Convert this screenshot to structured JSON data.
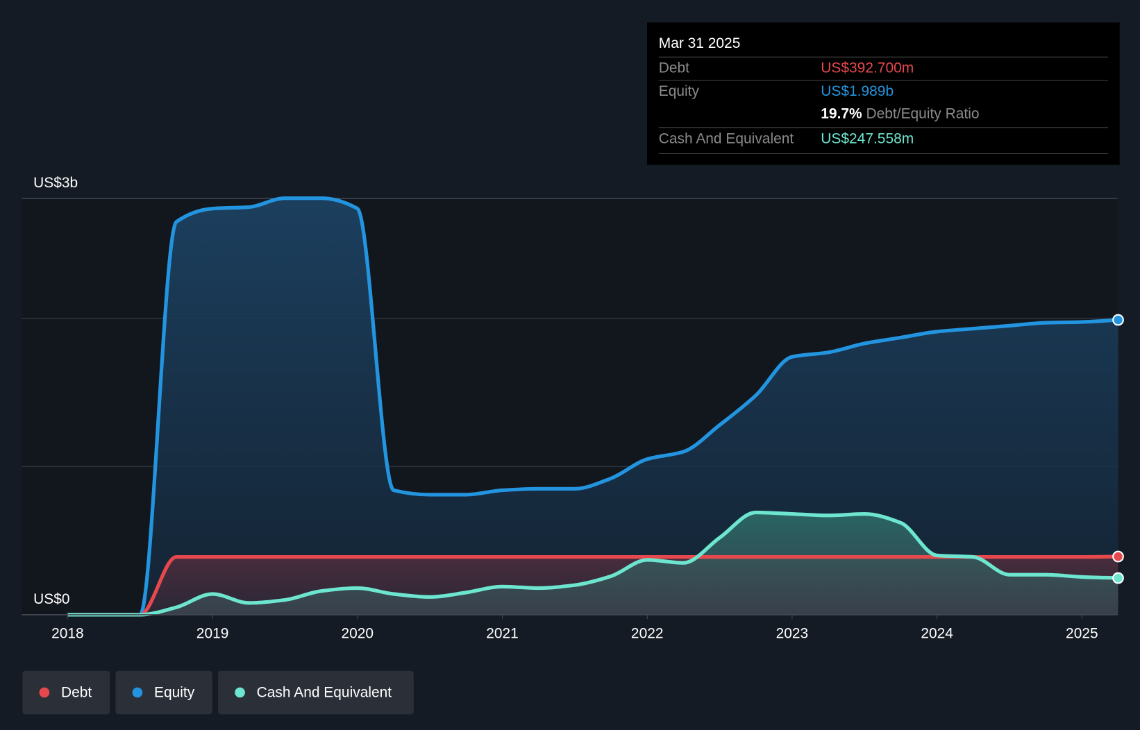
{
  "tooltip": {
    "date": "Mar 31 2025",
    "debt_label": "Debt",
    "debt_value": "US$392.700m",
    "equity_label": "Equity",
    "equity_value": "US$1.989b",
    "ratio_value": "19.7%",
    "ratio_label": "Debt/Equity Ratio",
    "cash_label": "Cash And Equivalent",
    "cash_value": "US$247.558m"
  },
  "legend": [
    {
      "label": "Debt",
      "color": "#e5484d"
    },
    {
      "label": "Equity",
      "color": "#2394df"
    },
    {
      "label": "Cash And Equivalent",
      "color": "#6de5cf"
    }
  ],
  "chart_data": {
    "type": "area",
    "ylabel_top": "US$3b",
    "ylabel_bottom": "US$0",
    "y_unit": "US$ billions",
    "ylim": [
      0,
      2.81
    ],
    "grid": true,
    "xticks": [
      "2018",
      "2019",
      "2020",
      "2021",
      "2022",
      "2023",
      "2024",
      "2025"
    ],
    "x": [
      2018,
      2018.25,
      2018.5,
      2018.75,
      2019,
      2019.25,
      2019.5,
      2019.75,
      2020,
      2020.25,
      2020.5,
      2020.75,
      2021,
      2021.25,
      2021.5,
      2021.75,
      2022,
      2022.25,
      2022.5,
      2022.75,
      2023,
      2023.25,
      2023.5,
      2023.75,
      2024,
      2024.25,
      2024.5,
      2024.75,
      2025,
      2025.25
    ],
    "series": [
      {
        "name": "Equity",
        "color": "#2394df",
        "values": [
          0,
          0,
          0,
          2.65,
          2.74,
          2.75,
          2.81,
          2.81,
          2.74,
          0.84,
          0.81,
          0.81,
          0.84,
          0.85,
          0.85,
          0.92,
          1.05,
          1.1,
          1.28,
          1.48,
          1.74,
          1.77,
          1.83,
          1.87,
          1.91,
          1.93,
          1.95,
          1.97,
          1.975,
          1.989
        ]
      },
      {
        "name": "Debt",
        "color": "#e5484d",
        "values": [
          0,
          0,
          0,
          0.39,
          0.39,
          0.39,
          0.39,
          0.39,
          0.39,
          0.39,
          0.39,
          0.39,
          0.39,
          0.39,
          0.39,
          0.39,
          0.39,
          0.39,
          0.39,
          0.39,
          0.39,
          0.39,
          0.39,
          0.39,
          0.39,
          0.39,
          0.39,
          0.39,
          0.39,
          0.3927
        ]
      },
      {
        "name": "Cash And Equivalent",
        "color": "#6de5cf",
        "values": [
          0,
          0,
          0,
          0.05,
          0.14,
          0.08,
          0.1,
          0.16,
          0.18,
          0.14,
          0.12,
          0.15,
          0.19,
          0.18,
          0.2,
          0.26,
          0.37,
          0.35,
          0.52,
          0.69,
          0.68,
          0.67,
          0.68,
          0.62,
          0.4,
          0.39,
          0.27,
          0.27,
          0.255,
          0.2476
        ]
      }
    ]
  }
}
